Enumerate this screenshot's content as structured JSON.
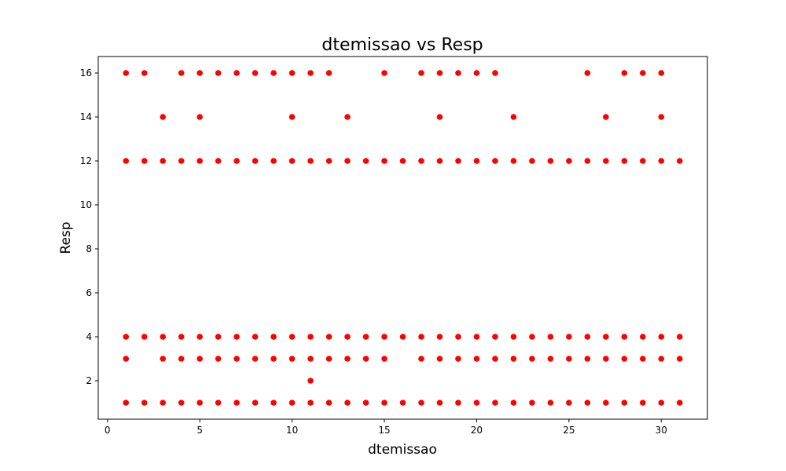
{
  "chart_data": {
    "type": "scatter",
    "title": "dtemissao vs Resp",
    "xlabel": "dtemissao",
    "ylabel": "Resp",
    "xlim": [
      -0.5,
      32.5
    ],
    "ylim": [
      0.25,
      16.75
    ],
    "xticks": [
      0,
      5,
      10,
      15,
      20,
      25,
      30
    ],
    "yticks": [
      2,
      4,
      6,
      8,
      10,
      12,
      14,
      16
    ],
    "grid": false,
    "point_color": "#ff0000",
    "points": [
      [
        1,
        16
      ],
      [
        2,
        16
      ],
      [
        4,
        16
      ],
      [
        5,
        16
      ],
      [
        6,
        16
      ],
      [
        7,
        16
      ],
      [
        8,
        16
      ],
      [
        9,
        16
      ],
      [
        10,
        16
      ],
      [
        11,
        16
      ],
      [
        12,
        16
      ],
      [
        15,
        16
      ],
      [
        17,
        16
      ],
      [
        18,
        16
      ],
      [
        19,
        16
      ],
      [
        20,
        16
      ],
      [
        21,
        16
      ],
      [
        26,
        16
      ],
      [
        28,
        16
      ],
      [
        29,
        16
      ],
      [
        30,
        16
      ],
      [
        3,
        14
      ],
      [
        5,
        14
      ],
      [
        10,
        14
      ],
      [
        13,
        14
      ],
      [
        18,
        14
      ],
      [
        22,
        14
      ],
      [
        27,
        14
      ],
      [
        30,
        14
      ],
      [
        1,
        12
      ],
      [
        2,
        12
      ],
      [
        3,
        12
      ],
      [
        4,
        12
      ],
      [
        5,
        12
      ],
      [
        6,
        12
      ],
      [
        7,
        12
      ],
      [
        8,
        12
      ],
      [
        9,
        12
      ],
      [
        10,
        12
      ],
      [
        11,
        12
      ],
      [
        12,
        12
      ],
      [
        13,
        12
      ],
      [
        14,
        12
      ],
      [
        15,
        12
      ],
      [
        16,
        12
      ],
      [
        17,
        12
      ],
      [
        18,
        12
      ],
      [
        19,
        12
      ],
      [
        20,
        12
      ],
      [
        21,
        12
      ],
      [
        22,
        12
      ],
      [
        23,
        12
      ],
      [
        24,
        12
      ],
      [
        25,
        12
      ],
      [
        26,
        12
      ],
      [
        27,
        12
      ],
      [
        28,
        12
      ],
      [
        29,
        12
      ],
      [
        30,
        12
      ],
      [
        31,
        12
      ],
      [
        1,
        4
      ],
      [
        2,
        4
      ],
      [
        3,
        4
      ],
      [
        4,
        4
      ],
      [
        5,
        4
      ],
      [
        6,
        4
      ],
      [
        7,
        4
      ],
      [
        8,
        4
      ],
      [
        9,
        4
      ],
      [
        10,
        4
      ],
      [
        11,
        4
      ],
      [
        12,
        4
      ],
      [
        13,
        4
      ],
      [
        14,
        4
      ],
      [
        15,
        4
      ],
      [
        16,
        4
      ],
      [
        17,
        4
      ],
      [
        18,
        4
      ],
      [
        19,
        4
      ],
      [
        20,
        4
      ],
      [
        21,
        4
      ],
      [
        22,
        4
      ],
      [
        23,
        4
      ],
      [
        24,
        4
      ],
      [
        25,
        4
      ],
      [
        26,
        4
      ],
      [
        27,
        4
      ],
      [
        28,
        4
      ],
      [
        29,
        4
      ],
      [
        30,
        4
      ],
      [
        31,
        4
      ],
      [
        1,
        3
      ],
      [
        3,
        3
      ],
      [
        4,
        3
      ],
      [
        5,
        3
      ],
      [
        6,
        3
      ],
      [
        7,
        3
      ],
      [
        8,
        3
      ],
      [
        9,
        3
      ],
      [
        10,
        3
      ],
      [
        11,
        3
      ],
      [
        12,
        3
      ],
      [
        13,
        3
      ],
      [
        14,
        3
      ],
      [
        15,
        3
      ],
      [
        17,
        3
      ],
      [
        18,
        3
      ],
      [
        19,
        3
      ],
      [
        20,
        3
      ],
      [
        21,
        3
      ],
      [
        22,
        3
      ],
      [
        23,
        3
      ],
      [
        24,
        3
      ],
      [
        25,
        3
      ],
      [
        26,
        3
      ],
      [
        27,
        3
      ],
      [
        28,
        3
      ],
      [
        29,
        3
      ],
      [
        30,
        3
      ],
      [
        31,
        3
      ],
      [
        11,
        2
      ],
      [
        1,
        1
      ],
      [
        2,
        1
      ],
      [
        3,
        1
      ],
      [
        4,
        1
      ],
      [
        5,
        1
      ],
      [
        6,
        1
      ],
      [
        7,
        1
      ],
      [
        8,
        1
      ],
      [
        9,
        1
      ],
      [
        10,
        1
      ],
      [
        11,
        1
      ],
      [
        12,
        1
      ],
      [
        13,
        1
      ],
      [
        14,
        1
      ],
      [
        15,
        1
      ],
      [
        16,
        1
      ],
      [
        17,
        1
      ],
      [
        18,
        1
      ],
      [
        19,
        1
      ],
      [
        20,
        1
      ],
      [
        21,
        1
      ],
      [
        22,
        1
      ],
      [
        23,
        1
      ],
      [
        24,
        1
      ],
      [
        25,
        1
      ],
      [
        26,
        1
      ],
      [
        27,
        1
      ],
      [
        28,
        1
      ],
      [
        29,
        1
      ],
      [
        30,
        1
      ],
      [
        31,
        1
      ]
    ]
  }
}
